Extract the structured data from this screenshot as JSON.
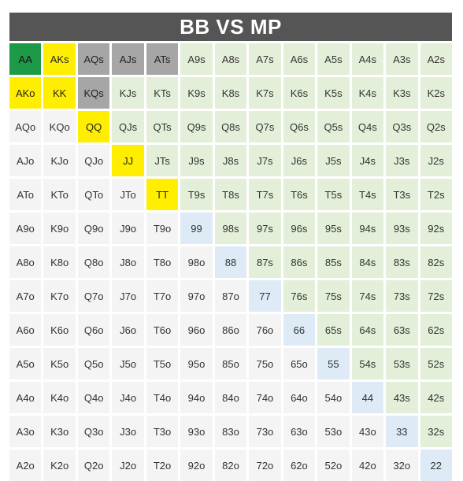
{
  "title": "BB VS MP",
  "legend_colors": {
    "green": "#1d9a48",
    "yellow": "#ffee00",
    "gray": "#a6a6a6",
    "light_green": "#e4efd9",
    "light_blue": "#deebf7",
    "plain": "#f4f4f4"
  },
  "rows": [
    [
      {
        "t": "AA",
        "c": "green"
      },
      {
        "t": "AKs",
        "c": "yellow"
      },
      {
        "t": "AQs",
        "c": "gray"
      },
      {
        "t": "AJs",
        "c": "gray"
      },
      {
        "t": "ATs",
        "c": "gray"
      },
      {
        "t": "A9s",
        "c": "light"
      },
      {
        "t": "A8s",
        "c": "light"
      },
      {
        "t": "A7s",
        "c": "light"
      },
      {
        "t": "A6s",
        "c": "light"
      },
      {
        "t": "A5s",
        "c": "light"
      },
      {
        "t": "A4s",
        "c": "light"
      },
      {
        "t": "A3s",
        "c": "light"
      },
      {
        "t": "A2s",
        "c": "light"
      }
    ],
    [
      {
        "t": "AKo",
        "c": "yellow"
      },
      {
        "t": "KK",
        "c": "yellow"
      },
      {
        "t": "KQs",
        "c": "gray"
      },
      {
        "t": "KJs",
        "c": "light"
      },
      {
        "t": "KTs",
        "c": "light"
      },
      {
        "t": "K9s",
        "c": "light"
      },
      {
        "t": "K8s",
        "c": "light"
      },
      {
        "t": "K7s",
        "c": "light"
      },
      {
        "t": "K6s",
        "c": "light"
      },
      {
        "t": "K5s",
        "c": "light"
      },
      {
        "t": "K4s",
        "c": "light"
      },
      {
        "t": "K3s",
        "c": "light"
      },
      {
        "t": "K2s",
        "c": "light"
      }
    ],
    [
      {
        "t": "AQo",
        "c": "plain"
      },
      {
        "t": "KQo",
        "c": "plain"
      },
      {
        "t": "QQ",
        "c": "yellow"
      },
      {
        "t": "QJs",
        "c": "light"
      },
      {
        "t": "QTs",
        "c": "light"
      },
      {
        "t": "Q9s",
        "c": "light"
      },
      {
        "t": "Q8s",
        "c": "light"
      },
      {
        "t": "Q7s",
        "c": "light"
      },
      {
        "t": "Q6s",
        "c": "light"
      },
      {
        "t": "Q5s",
        "c": "light"
      },
      {
        "t": "Q4s",
        "c": "light"
      },
      {
        "t": "Q3s",
        "c": "light"
      },
      {
        "t": "Q2s",
        "c": "light"
      }
    ],
    [
      {
        "t": "AJo",
        "c": "plain"
      },
      {
        "t": "KJo",
        "c": "plain"
      },
      {
        "t": "QJo",
        "c": "plain"
      },
      {
        "t": "JJ",
        "c": "yellow"
      },
      {
        "t": "JTs",
        "c": "light"
      },
      {
        "t": "J9s",
        "c": "light"
      },
      {
        "t": "J8s",
        "c": "light"
      },
      {
        "t": "J7s",
        "c": "light"
      },
      {
        "t": "J6s",
        "c": "light"
      },
      {
        "t": "J5s",
        "c": "light"
      },
      {
        "t": "J4s",
        "c": "light"
      },
      {
        "t": "J3s",
        "c": "light"
      },
      {
        "t": "J2s",
        "c": "light"
      }
    ],
    [
      {
        "t": "ATo",
        "c": "plain"
      },
      {
        "t": "KTo",
        "c": "plain"
      },
      {
        "t": "QTo",
        "c": "plain"
      },
      {
        "t": "JTo",
        "c": "plain"
      },
      {
        "t": "TT",
        "c": "yellow"
      },
      {
        "t": "T9s",
        "c": "light"
      },
      {
        "t": "T8s",
        "c": "light"
      },
      {
        "t": "T7s",
        "c": "light"
      },
      {
        "t": "T6s",
        "c": "light"
      },
      {
        "t": "T5s",
        "c": "light"
      },
      {
        "t": "T4s",
        "c": "light"
      },
      {
        "t": "T3s",
        "c": "light"
      },
      {
        "t": "T2s",
        "c": "light"
      }
    ],
    [
      {
        "t": "A9o",
        "c": "plain"
      },
      {
        "t": "K9o",
        "c": "plain"
      },
      {
        "t": "Q9o",
        "c": "plain"
      },
      {
        "t": "J9o",
        "c": "plain"
      },
      {
        "t": "T9o",
        "c": "plain"
      },
      {
        "t": "99",
        "c": "blue"
      },
      {
        "t": "98s",
        "c": "light"
      },
      {
        "t": "97s",
        "c": "light"
      },
      {
        "t": "96s",
        "c": "light"
      },
      {
        "t": "95s",
        "c": "light"
      },
      {
        "t": "94s",
        "c": "light"
      },
      {
        "t": "93s",
        "c": "light"
      },
      {
        "t": "92s",
        "c": "light"
      }
    ],
    [
      {
        "t": "A8o",
        "c": "plain"
      },
      {
        "t": "K8o",
        "c": "plain"
      },
      {
        "t": "Q8o",
        "c": "plain"
      },
      {
        "t": "J8o",
        "c": "plain"
      },
      {
        "t": "T8o",
        "c": "plain"
      },
      {
        "t": "98o",
        "c": "plain"
      },
      {
        "t": "88",
        "c": "blue"
      },
      {
        "t": "87s",
        "c": "light"
      },
      {
        "t": "86s",
        "c": "light"
      },
      {
        "t": "85s",
        "c": "light"
      },
      {
        "t": "84s",
        "c": "light"
      },
      {
        "t": "83s",
        "c": "light"
      },
      {
        "t": "82s",
        "c": "light"
      }
    ],
    [
      {
        "t": "A7o",
        "c": "plain"
      },
      {
        "t": "K7o",
        "c": "plain"
      },
      {
        "t": "Q7o",
        "c": "plain"
      },
      {
        "t": "J7o",
        "c": "plain"
      },
      {
        "t": "T7o",
        "c": "plain"
      },
      {
        "t": "97o",
        "c": "plain"
      },
      {
        "t": "87o",
        "c": "plain"
      },
      {
        "t": "77",
        "c": "blue"
      },
      {
        "t": "76s",
        "c": "light"
      },
      {
        "t": "75s",
        "c": "light"
      },
      {
        "t": "74s",
        "c": "light"
      },
      {
        "t": "73s",
        "c": "light"
      },
      {
        "t": "72s",
        "c": "light"
      }
    ],
    [
      {
        "t": "A6o",
        "c": "plain"
      },
      {
        "t": "K6o",
        "c": "plain"
      },
      {
        "t": "Q6o",
        "c": "plain"
      },
      {
        "t": "J6o",
        "c": "plain"
      },
      {
        "t": "T6o",
        "c": "plain"
      },
      {
        "t": "96o",
        "c": "plain"
      },
      {
        "t": "86o",
        "c": "plain"
      },
      {
        "t": "76o",
        "c": "plain"
      },
      {
        "t": "66",
        "c": "blue"
      },
      {
        "t": "65s",
        "c": "light"
      },
      {
        "t": "64s",
        "c": "light"
      },
      {
        "t": "63s",
        "c": "light"
      },
      {
        "t": "62s",
        "c": "light"
      }
    ],
    [
      {
        "t": "A5o",
        "c": "plain"
      },
      {
        "t": "K5o",
        "c": "plain"
      },
      {
        "t": "Q5o",
        "c": "plain"
      },
      {
        "t": "J5o",
        "c": "plain"
      },
      {
        "t": "T5o",
        "c": "plain"
      },
      {
        "t": "95o",
        "c": "plain"
      },
      {
        "t": "85o",
        "c": "plain"
      },
      {
        "t": "75o",
        "c": "plain"
      },
      {
        "t": "65o",
        "c": "plain"
      },
      {
        "t": "55",
        "c": "blue"
      },
      {
        "t": "54s",
        "c": "light"
      },
      {
        "t": "53s",
        "c": "light"
      },
      {
        "t": "52s",
        "c": "light"
      }
    ],
    [
      {
        "t": "A4o",
        "c": "plain"
      },
      {
        "t": "K4o",
        "c": "plain"
      },
      {
        "t": "Q4o",
        "c": "plain"
      },
      {
        "t": "J4o",
        "c": "plain"
      },
      {
        "t": "T4o",
        "c": "plain"
      },
      {
        "t": "94o",
        "c": "plain"
      },
      {
        "t": "84o",
        "c": "plain"
      },
      {
        "t": "74o",
        "c": "plain"
      },
      {
        "t": "64o",
        "c": "plain"
      },
      {
        "t": "54o",
        "c": "plain"
      },
      {
        "t": "44",
        "c": "blue"
      },
      {
        "t": "43s",
        "c": "light"
      },
      {
        "t": "42s",
        "c": "light"
      }
    ],
    [
      {
        "t": "A3o",
        "c": "plain"
      },
      {
        "t": "K3o",
        "c": "plain"
      },
      {
        "t": "Q3o",
        "c": "plain"
      },
      {
        "t": "J3o",
        "c": "plain"
      },
      {
        "t": "T3o",
        "c": "plain"
      },
      {
        "t": "93o",
        "c": "plain"
      },
      {
        "t": "83o",
        "c": "plain"
      },
      {
        "t": "73o",
        "c": "plain"
      },
      {
        "t": "63o",
        "c": "plain"
      },
      {
        "t": "53o",
        "c": "plain"
      },
      {
        "t": "43o",
        "c": "plain"
      },
      {
        "t": "33",
        "c": "blue"
      },
      {
        "t": "32s",
        "c": "light"
      }
    ],
    [
      {
        "t": "A2o",
        "c": "plain"
      },
      {
        "t": "K2o",
        "c": "plain"
      },
      {
        "t": "Q2o",
        "c": "plain"
      },
      {
        "t": "J2o",
        "c": "plain"
      },
      {
        "t": "T2o",
        "c": "plain"
      },
      {
        "t": "92o",
        "c": "plain"
      },
      {
        "t": "82o",
        "c": "plain"
      },
      {
        "t": "72o",
        "c": "plain"
      },
      {
        "t": "62o",
        "c": "plain"
      },
      {
        "t": "52o",
        "c": "plain"
      },
      {
        "t": "42o",
        "c": "plain"
      },
      {
        "t": "32o",
        "c": "plain"
      },
      {
        "t": "22",
        "c": "blue"
      }
    ]
  ]
}
